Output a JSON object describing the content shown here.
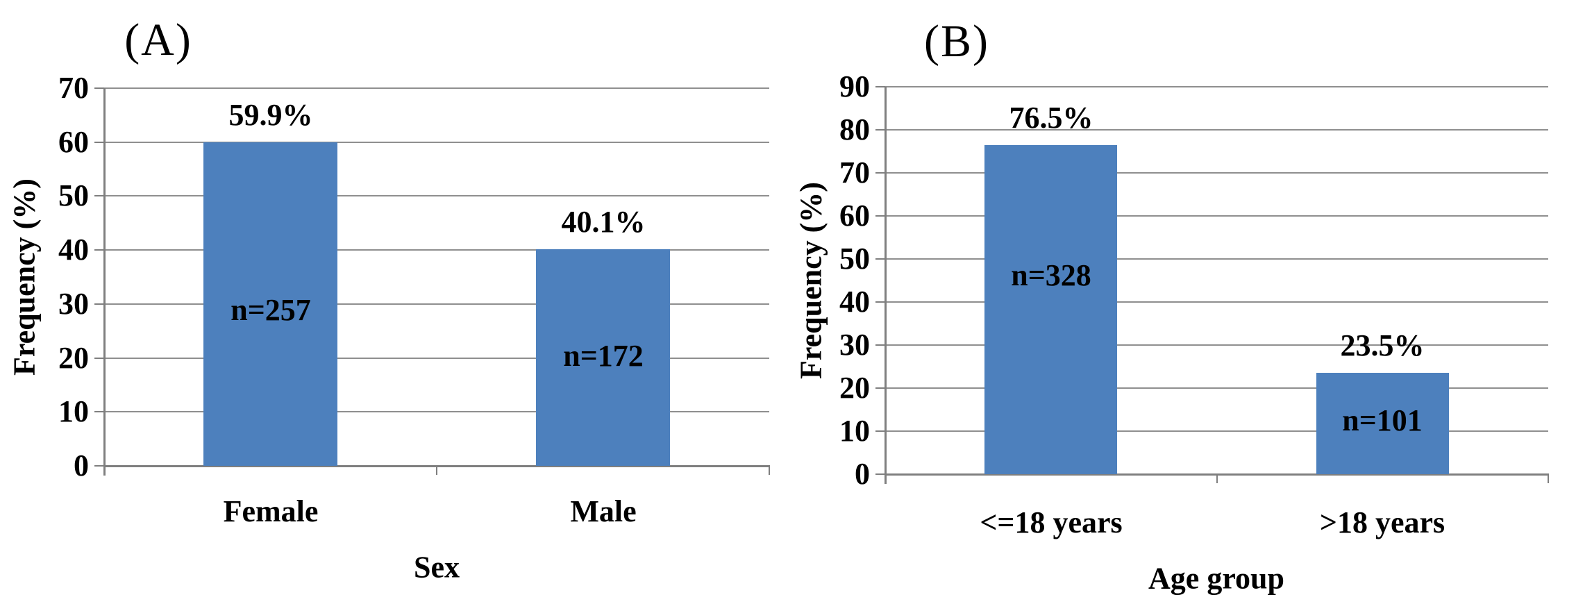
{
  "figure": {
    "background_color": "#ffffff",
    "bar_color": "#4d80bd",
    "gridline_color": "#8f8f8f",
    "axis_color": "#7f7f7f",
    "text_color": "#000000"
  },
  "chart_data": [
    {
      "type": "bar",
      "title": "(A)",
      "categories": [
        "Female",
        "Male"
      ],
      "values": [
        59.9,
        40.1
      ],
      "value_labels": [
        "59.9%",
        "40.1%"
      ],
      "count_labels": [
        "n=257",
        "n=172"
      ],
      "xlabel": "Sex",
      "ylabel": "Frequency (%)",
      "ylim": [
        0,
        70
      ],
      "yticks": [
        0,
        10,
        20,
        30,
        40,
        50,
        60,
        70
      ],
      "grid": true,
      "legend": "none",
      "bar_color": "#4d80bd"
    },
    {
      "type": "bar",
      "title": "(B)",
      "categories": [
        "<=18 years",
        ">18 years"
      ],
      "values": [
        76.5,
        23.5
      ],
      "value_labels": [
        "76.5%",
        "23.5%"
      ],
      "count_labels": [
        "n=328",
        "n=101"
      ],
      "xlabel": "Age group",
      "ylabel": "Frequency (%)",
      "ylim": [
        0,
        90
      ],
      "yticks": [
        0,
        10,
        20,
        30,
        40,
        50,
        60,
        70,
        80,
        90
      ],
      "grid": true,
      "legend": "none",
      "bar_color": "#4d80bd"
    }
  ]
}
